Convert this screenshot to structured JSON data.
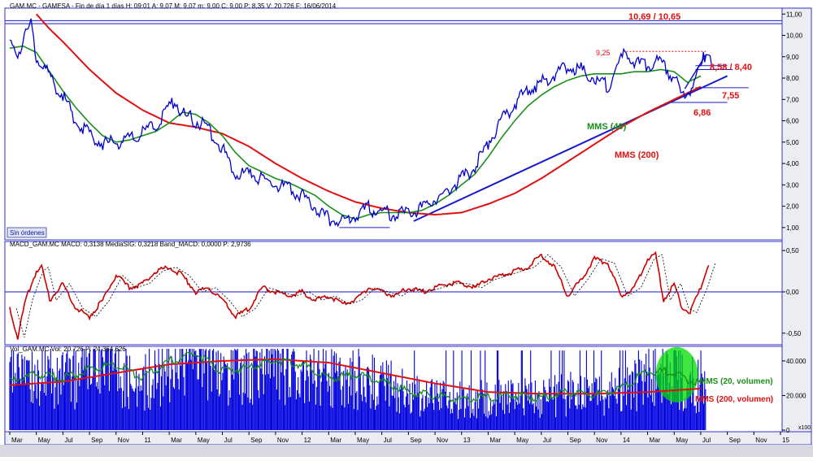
{
  "colors": {
    "price": "#0000cc",
    "ma_short": "#1a8f1a",
    "ma_long": "#e01010",
    "trend": "#1a1acc",
    "macd": "#cc0000",
    "signal": "#000000",
    "axis_bg": "#e6e6ee",
    "volume_bar": "#0000dd",
    "highlight": "#00dd00"
  },
  "price_panel": {
    "header": "GAM.MC - GAMESA - Fin de día 1 días  H: 09:01  A: 9,07  M: 9,07  m: 9,00  C: 9,00  P: 8,35  V: 20.726  F: 16/06/2014",
    "button": "Sin órdenes",
    "annotations": {
      "resistance": "10,69 / 10,65",
      "peak": "9,25",
      "r1": "8,58 / 8,40",
      "s1": "7,55",
      "s2": "6,86",
      "mms40": "MMS (40)",
      "mms200": "MMS (200)"
    }
  },
  "macd_panel": {
    "header": "MACD_GAM.MC  MACD: 0,3138  MediaSIG: 0,3218  Band_MACD: 0,0000  P: 2,9736"
  },
  "volume_panel": {
    "header": "Vol_GAM.MC  Vol: 20.726  P: 24.364.626",
    "label_ma20": "MMS (20, volumen)",
    "label_ma200": "MMS (200, volumen)",
    "unit": "x100"
  },
  "chart_data": [
    {
      "type": "line",
      "panel": "price",
      "x_labels": [
        "Mar",
        "May",
        "Jul",
        "Sep",
        "Nov",
        "11",
        "Mar",
        "May",
        "Jul",
        "Sep",
        "Nov",
        "12",
        "Mar",
        "May",
        "Jul",
        "Sep",
        "Nov",
        "13",
        "Mar",
        "May",
        "Jul",
        "Sep",
        "Nov",
        "14",
        "Mar",
        "May",
        "Jul",
        "Sep",
        "Nov",
        "15"
      ],
      "y_ticks": [
        "1,00",
        "2,00",
        "3,00",
        "4,00",
        "5,00",
        "6,00",
        "7,00",
        "8,00",
        "9,00",
        "10,00",
        "11,00"
      ],
      "ylim": [
        0.5,
        11.2
      ],
      "x_range": [
        0,
        29
      ],
      "series": [
        {
          "role": "price",
          "x": [
            0,
            0.3,
            0.6,
            0.8,
            1,
            1.2,
            1.5,
            2,
            2.5,
            3,
            3.5,
            4,
            4.5,
            5,
            5.5,
            6,
            6.2,
            6.5,
            7,
            7.5,
            8,
            8.5,
            9,
            9.5,
            10,
            10.5,
            11,
            11.5,
            12,
            12.5,
            13,
            13.5,
            14,
            14.5,
            15,
            15.5,
            16,
            16.5,
            17,
            17.5,
            18,
            18.5,
            19,
            19.5,
            20,
            20.5,
            21,
            21.5,
            22,
            22.5,
            23,
            23.2,
            23.5,
            24,
            24.3,
            24.6,
            25,
            25.3,
            25.6,
            26,
            26.2,
            26.4
          ],
          "y": [
            9.5,
            9.2,
            10.0,
            10.6,
            9.0,
            8.8,
            8.0,
            7.2,
            6.0,
            5.4,
            4.9,
            5.0,
            5.1,
            5.4,
            5.8,
            6.6,
            7.0,
            6.3,
            6.0,
            5.6,
            4.7,
            3.6,
            3.5,
            3.3,
            3.0,
            2.8,
            2.5,
            2.0,
            1.4,
            1.2,
            1.6,
            1.9,
            1.7,
            1.6,
            1.7,
            1.9,
            2.3,
            2.8,
            3.3,
            3.8,
            5.0,
            6.0,
            6.8,
            7.5,
            7.8,
            8.2,
            8.6,
            8.4,
            8.0,
            7.6,
            8.9,
            9.2,
            8.7,
            8.6,
            8.8,
            8.5,
            8.1,
            7.0,
            7.5,
            8.5,
            9.25,
            9.0
          ]
        },
        {
          "role": "ma40",
          "label": "MMS (40)",
          "x": [
            0,
            0.5,
            1,
            1.5,
            2,
            2.5,
            3,
            3.5,
            4,
            4.5,
            5,
            5.5,
            6,
            6.5,
            7,
            7.5,
            8,
            8.5,
            9,
            9.5,
            10,
            10.5,
            11,
            11.5,
            12,
            12.5,
            13,
            13.5,
            14,
            14.5,
            15,
            15.5,
            16,
            16.5,
            17,
            17.5,
            18,
            18.5,
            19,
            19.5,
            20,
            20.5,
            21,
            21.5,
            22,
            22.5,
            23,
            23.5,
            24,
            24.5,
            25,
            25.5,
            26
          ],
          "y": [
            9.4,
            9.5,
            9.2,
            8.3,
            7.4,
            6.6,
            5.9,
            5.3,
            5.0,
            5.1,
            5.3,
            5.5,
            5.9,
            6.4,
            6.3,
            5.9,
            5.3,
            4.5,
            3.9,
            3.6,
            3.3,
            3.1,
            2.8,
            2.5,
            2.0,
            1.6,
            1.4,
            1.6,
            1.7,
            1.7,
            1.7,
            1.8,
            2.1,
            2.5,
            3.0,
            3.5,
            4.3,
            5.2,
            6.0,
            6.7,
            7.2,
            7.6,
            7.9,
            8.1,
            8.2,
            8.2,
            8.2,
            8.3,
            8.3,
            8.4,
            8.3,
            7.8,
            8.1
          ]
        },
        {
          "role": "ma200",
          "label": "MMS (200)",
          "x": [
            1,
            1.5,
            2,
            3,
            4,
            5,
            6,
            7,
            8,
            9,
            10,
            11,
            12,
            13,
            14,
            15,
            16,
            17,
            18,
            19,
            20,
            21,
            22,
            23,
            24,
            25,
            26
          ],
          "y": [
            11.0,
            10.3,
            9.7,
            8.4,
            7.3,
            6.5,
            5.9,
            5.7,
            5.4,
            4.8,
            4.0,
            3.3,
            2.7,
            2.2,
            1.9,
            1.7,
            1.6,
            1.7,
            2.1,
            2.6,
            3.3,
            4.1,
            4.9,
            5.7,
            6.4,
            7.0,
            7.6
          ]
        }
      ]
    },
    {
      "type": "line",
      "panel": "macd",
      "y_ticks": [
        "0,50",
        "0,00",
        "-0,50"
      ],
      "ylim": [
        -0.62,
        0.58
      ],
      "series": [
        {
          "role": "macd",
          "x": [
            0,
            0.3,
            0.6,
            1,
            1.2,
            1.5,
            2,
            2.5,
            3,
            3.5,
            4,
            4.5,
            5,
            5.5,
            6,
            6.5,
            7,
            7.5,
            8,
            8.5,
            9,
            9.5,
            10,
            10.5,
            11,
            11.5,
            12,
            12.5,
            13,
            13.5,
            14,
            14.5,
            15,
            15.5,
            16,
            16.5,
            17,
            17.5,
            18,
            18.5,
            19,
            19.5,
            20,
            20.5,
            21,
            21.5,
            22,
            22.5,
            23,
            23.5,
            24,
            24.3,
            24.6,
            25,
            25.3,
            25.6,
            26,
            26.3
          ],
          "y": [
            -0.2,
            -0.55,
            -0.1,
            0.25,
            0.3,
            -0.1,
            0.1,
            -0.2,
            -0.3,
            -0.1,
            0.2,
            0.05,
            0.1,
            0.25,
            0.3,
            0.2,
            0.0,
            0.05,
            -0.1,
            -0.3,
            -0.2,
            0.05,
            0.0,
            -0.05,
            0.0,
            -0.1,
            -0.05,
            -0.15,
            -0.1,
            0.05,
            0.0,
            -0.05,
            0.05,
            0.0,
            0.05,
            0.1,
            0.1,
            0.05,
            0.15,
            0.2,
            0.25,
            0.3,
            0.45,
            0.3,
            -0.05,
            0.15,
            0.4,
            0.35,
            -0.05,
            0.05,
            0.4,
            0.45,
            -0.1,
            0.1,
            -0.2,
            -0.25,
            0.05,
            0.35
          ]
        }
      ]
    },
    {
      "type": "bar",
      "panel": "volume",
      "y_ticks": [
        "40.000",
        "20.000",
        "0"
      ],
      "ylim": [
        0,
        47000
      ],
      "series": [
        {
          "role": "ma20_volume",
          "label": "MMS (20, volumen)",
          "x": [
            0,
            1,
            2,
            3,
            4,
            5,
            6,
            7,
            8,
            9,
            10,
            11,
            12,
            13,
            14,
            15,
            16,
            17,
            18,
            19,
            20,
            21,
            22,
            23,
            24,
            25,
            26
          ],
          "y": [
            28000,
            32000,
            30000,
            35000,
            38000,
            30000,
            40000,
            44000,
            34000,
            36000,
            40000,
            38000,
            30000,
            32000,
            28000,
            22000,
            20000,
            18000,
            19000,
            20000,
            19000,
            22000,
            20000,
            24000,
            34000,
            33000,
            26000
          ]
        },
        {
          "role": "ma200_volume",
          "label": "MMS (200, volumen)",
          "x": [
            0,
            2,
            4,
            6,
            8,
            10,
            12,
            14,
            16,
            18,
            20,
            22,
            24,
            26
          ],
          "y": [
            26000,
            28000,
            33000,
            38000,
            40000,
            41000,
            39000,
            33000,
            27000,
            22000,
            21000,
            21000,
            22000,
            24000
          ]
        }
      ]
    }
  ]
}
